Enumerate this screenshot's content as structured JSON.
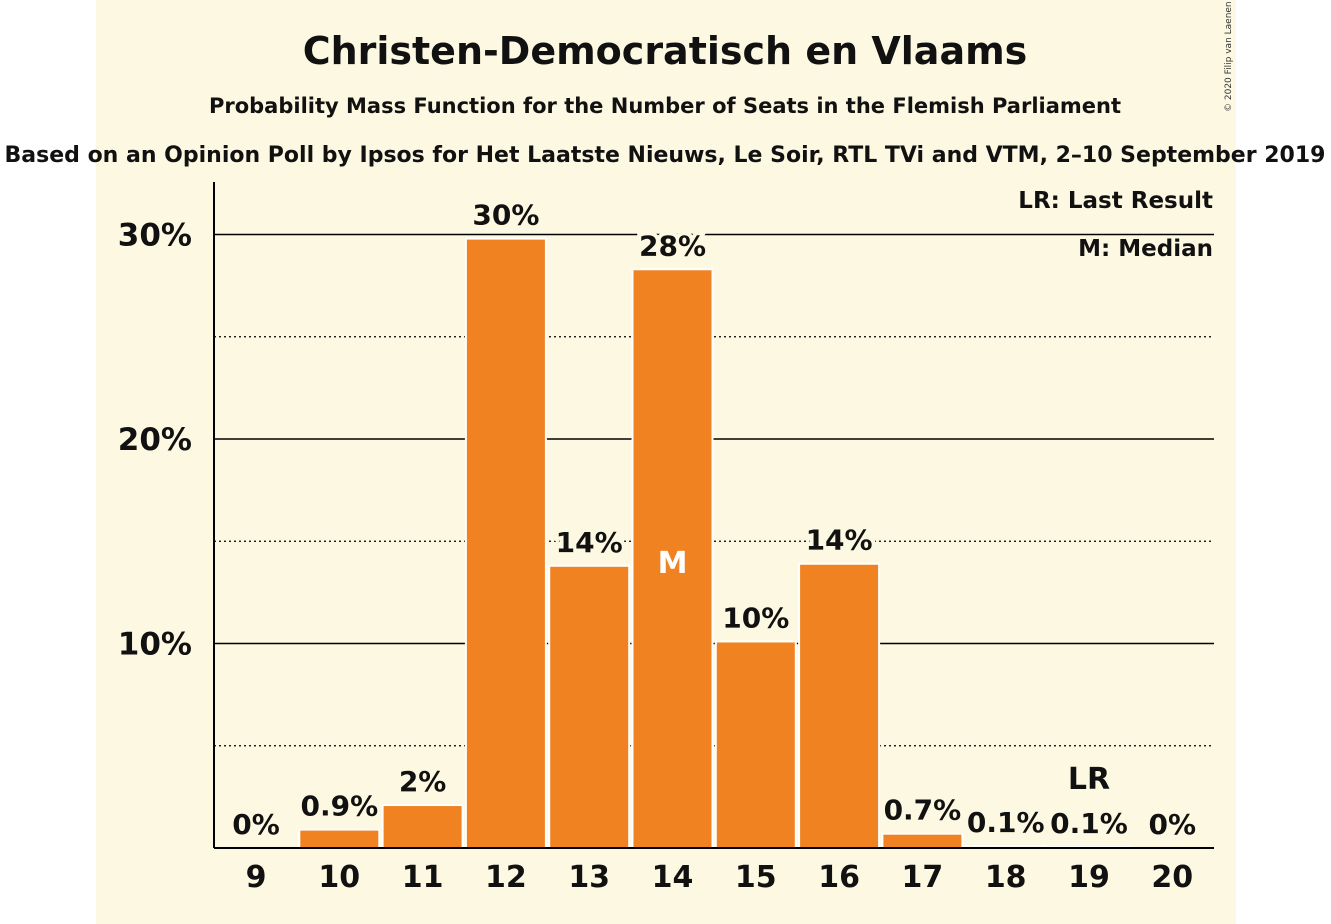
{
  "colors": {
    "background": "#fdf8e1",
    "bar": "#f08222",
    "bar_stroke": "#ffffff",
    "axis": "#000000",
    "median_text": "#ffffff"
  },
  "copyright": "© 2020 Filip van Laenen",
  "chart_data": {
    "type": "bar",
    "title": "Christen-Democratisch en Vlaams",
    "subtitle": "Probability Mass Function for the Number of Seats in the Flemish Parliament",
    "subtitle2": "Based on an Opinion Poll by Ipsos for Het Laatste Nieuws, Le Soir, RTL TVi and VTM, 2–10 September 2019",
    "categories": [
      "9",
      "10",
      "11",
      "12",
      "13",
      "14",
      "15",
      "16",
      "17",
      "18",
      "19",
      "20"
    ],
    "values": [
      0,
      0.9,
      2.1,
      29.8,
      13.8,
      28.3,
      10.1,
      13.9,
      0.7,
      0.1,
      0.05,
      0
    ],
    "value_labels": [
      "0%",
      "0.9%",
      "2%",
      "30%",
      "14%",
      "28%",
      "10%",
      "14%",
      "0.7%",
      "0.1%",
      "0.1%",
      "0%"
    ],
    "ylim": [
      0,
      32.5
    ],
    "yticks": [
      10,
      20,
      30
    ],
    "ytick_labels": [
      "10%",
      "20%",
      "30%"
    ],
    "minor_gridlines": [
      5,
      15,
      25
    ],
    "grid": true,
    "median_category": "14",
    "median_marker": "M",
    "last_result_category": "19",
    "last_result_marker": "LR",
    "legend": [
      "LR: Last Result",
      "M: Median"
    ],
    "legend_position": "top-right"
  }
}
